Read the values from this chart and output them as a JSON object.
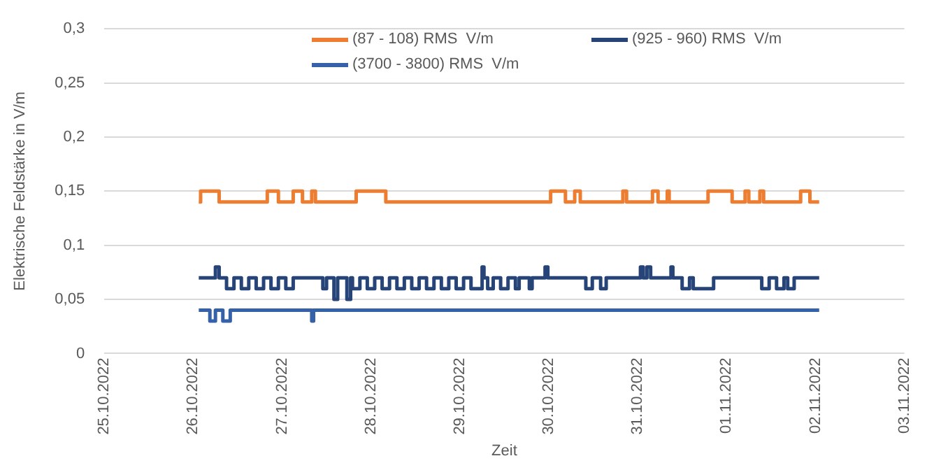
{
  "chart_data": {
    "type": "step",
    "xlabel": "Zeit",
    "ylabel": "Elektrische Feldstärke in V/m",
    "xlim": [
      "2022-10-25",
      "2022-11-03"
    ],
    "xticks": [
      {
        "value": "2022-10-25",
        "label": "25.10.2022"
      },
      {
        "value": "2022-10-26",
        "label": "26.10.2022"
      },
      {
        "value": "2022-10-27",
        "label": "27.10.2022"
      },
      {
        "value": "2022-10-28",
        "label": "28.10.2022"
      },
      {
        "value": "2022-10-29",
        "label": "29.10.2022"
      },
      {
        "value": "2022-10-30",
        "label": "30.10.2022"
      },
      {
        "value": "2022-10-31",
        "label": "31.10.2022"
      },
      {
        "value": "2022-11-01",
        "label": "01.11.2022"
      },
      {
        "value": "2022-11-02",
        "label": "02.11.2022"
      },
      {
        "value": "2022-11-03",
        "label": "03.11.2022"
      }
    ],
    "ylim": [
      0,
      0.3
    ],
    "yticks": [
      0,
      {
        "value": 0.05,
        "label": "0,05"
      },
      {
        "value": 0.1,
        "label": "0,1"
      },
      {
        "value": 0.15,
        "label": "0,15"
      },
      {
        "value": 0.2,
        "label": "0,2"
      },
      {
        "value": 0.25,
        "label": "0,25"
      },
      {
        "value": 0.3,
        "label": "0,3"
      }
    ],
    "grid": "y",
    "legend": "top right",
    "series": [
      {
        "name": "(87 - 108) RMS  V/m",
        "color": "#ed7d31",
        "x": [
          "2022-10-26T01:30",
          "2022-10-26T02:00",
          "2022-10-26T07:00",
          "2022-10-26T20:00",
          "2022-10-26T23:00",
          "2022-10-27T03:00",
          "2022-10-27T05:30",
          "2022-10-27T08:00",
          "2022-10-27T09:00",
          "2022-10-27T20:00",
          "2022-10-28T04:00",
          "2022-10-30T00:30",
          "2022-10-30T04:30",
          "2022-10-30T07:00",
          "2022-10-30T08:30",
          "2022-10-30T20:00",
          "2022-10-30T21:00",
          "2022-10-31T04:00",
          "2022-10-31T05:30",
          "2022-10-31T08:00",
          "2022-10-31T08:30",
          "2022-10-31T19:00",
          "2022-11-01T01:30",
          "2022-11-01T05:00",
          "2022-11-01T06:00",
          "2022-11-01T09:00",
          "2022-11-01T10:00",
          "2022-11-01T20:00",
          "2022-11-01T22:30",
          "2022-11-02T01:00"
        ],
        "values": [
          0.14,
          0.15,
          0.14,
          0.15,
          0.14,
          0.15,
          0.14,
          0.15,
          0.14,
          0.15,
          0.14,
          0.15,
          0.14,
          0.15,
          0.14,
          0.15,
          0.14,
          0.15,
          0.14,
          0.15,
          0.14,
          0.15,
          0.14,
          0.15,
          0.14,
          0.15,
          0.14,
          0.15,
          0.14,
          0.14
        ]
      },
      {
        "name": "(925 - 960) RMS  V/m",
        "color": "#264478",
        "x": [
          "2022-10-26T01:30",
          "2022-10-26T06:00",
          "2022-10-26T07:00",
          "2022-10-26T09:00",
          "2022-10-26T11:00",
          "2022-10-26T13:00",
          "2022-10-26T15:00",
          "2022-10-26T17:00",
          "2022-10-26T19:00",
          "2022-10-26T21:00",
          "2022-10-26T23:00",
          "2022-10-27T01:00",
          "2022-10-27T03:00",
          "2022-10-27T11:00",
          "2022-10-27T12:00",
          "2022-10-27T14:00",
          "2022-10-27T15:00",
          "2022-10-27T17:30",
          "2022-10-27T18:30",
          "2022-10-27T19:00",
          "2022-10-27T21:00",
          "2022-10-27T23:00",
          "2022-10-28T01:00",
          "2022-10-28T03:00",
          "2022-10-28T05:00",
          "2022-10-28T07:00",
          "2022-10-28T09:00",
          "2022-10-28T11:00",
          "2022-10-28T13:00",
          "2022-10-28T15:00",
          "2022-10-28T17:00",
          "2022-10-28T19:00",
          "2022-10-28T21:00",
          "2022-10-28T23:00",
          "2022-10-29T01:00",
          "2022-10-29T03:00",
          "2022-10-29T06:00",
          "2022-10-29T06:30",
          "2022-10-29T07:30",
          "2022-10-29T09:00",
          "2022-10-29T11:00",
          "2022-10-29T13:00",
          "2022-10-29T15:00",
          "2022-10-29T16:00",
          "2022-10-29T18:00",
          "2022-10-29T18:45",
          "2022-10-29T19:30",
          "2022-10-29T23:00",
          "2022-10-29T23:45",
          "2022-10-30T10:00",
          "2022-10-30T11:45",
          "2022-10-30T14:00",
          "2022-10-30T15:30",
          "2022-10-31T00:45",
          "2022-10-31T01:30",
          "2022-10-31T02:30",
          "2022-10-31T03:30",
          "2022-10-31T09:00",
          "2022-10-31T09:30",
          "2022-10-31T12:00",
          "2022-10-31T14:00",
          "2022-10-31T15:00",
          "2022-10-31T20:30",
          "2022-11-01T09:30",
          "2022-11-01T11:30",
          "2022-11-01T13:30",
          "2022-11-01T15:30",
          "2022-11-01T16:30",
          "2022-11-01T18:15",
          "2022-11-02T01:00"
        ],
        "values": [
          0.07,
          0.08,
          0.07,
          0.06,
          0.07,
          0.06,
          0.07,
          0.06,
          0.07,
          0.06,
          0.07,
          0.06,
          0.07,
          0.06,
          0.07,
          0.05,
          0.07,
          0.05,
          0.07,
          0.06,
          0.07,
          0.06,
          0.07,
          0.06,
          0.07,
          0.06,
          0.07,
          0.06,
          0.07,
          0.06,
          0.07,
          0.06,
          0.07,
          0.06,
          0.07,
          0.06,
          0.08,
          0.07,
          0.06,
          0.07,
          0.06,
          0.07,
          0.06,
          0.07,
          0.07,
          0.06,
          0.07,
          0.08,
          0.07,
          0.06,
          0.07,
          0.06,
          0.07,
          0.08,
          0.07,
          0.08,
          0.07,
          0.08,
          0.07,
          0.06,
          0.07,
          0.06,
          0.07,
          0.06,
          0.07,
          0.06,
          0.07,
          0.06,
          0.07,
          0.07
        ]
      },
      {
        "name": "(3700 - 3800) RMS  V/m",
        "color": "#3461a8",
        "x": [
          "2022-10-26T01:30",
          "2022-10-26T04:30",
          "2022-10-26T06:00",
          "2022-10-26T08:00",
          "2022-10-26T10:00",
          "2022-10-27T08:00",
          "2022-10-27T08:30",
          "2022-11-02T01:00"
        ],
        "values": [
          0.04,
          0.03,
          0.04,
          0.03,
          0.04,
          0.03,
          0.04,
          0.04
        ]
      }
    ]
  }
}
